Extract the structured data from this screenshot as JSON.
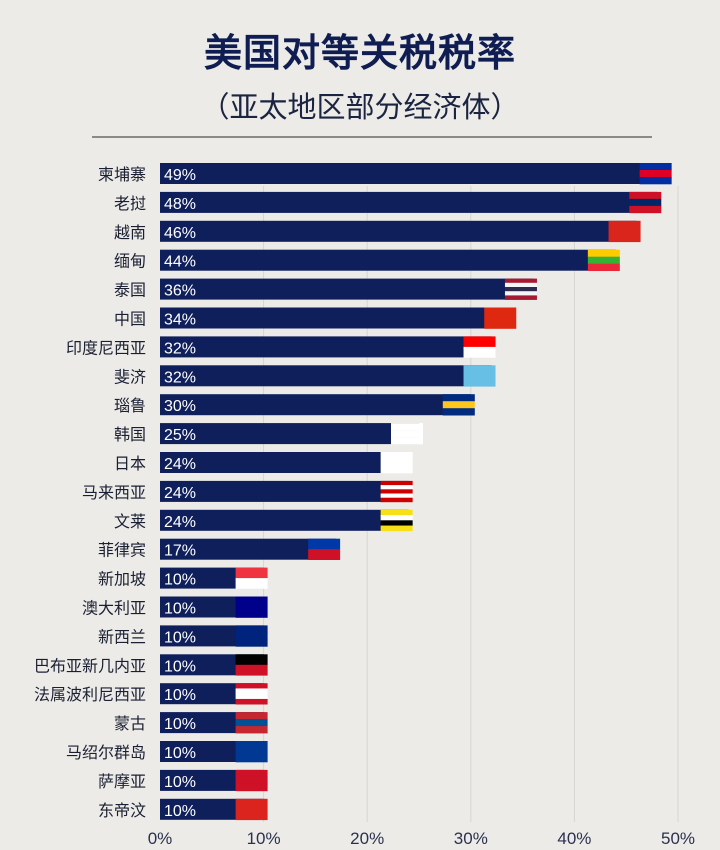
{
  "chart_data": {
    "type": "bar",
    "orientation": "horizontal",
    "title": "美国对等关税税率",
    "subtitle": "（亚太地区部分经济体）",
    "xlabel": "",
    "ylabel": "",
    "xlim": [
      0,
      50
    ],
    "x_ticks": [
      "0%",
      "10%",
      "20%",
      "30%",
      "40%",
      "50%"
    ],
    "grid": "vertical",
    "bar_color": "#0e1f5c",
    "categories": [
      "柬埔寨",
      "老挝",
      "越南",
      "缅甸",
      "泰国",
      "中国",
      "印度尼西亚",
      "斐济",
      "瑙鲁",
      "韩国",
      "日本",
      "马来西亚",
      "文莱",
      "菲律宾",
      "新加坡",
      "澳大利亚",
      "新西兰",
      "巴布亚新几内亚",
      "法属波利尼西亚",
      "蒙古",
      "马绍尔群岛",
      "萨摩亚",
      "东帝汶"
    ],
    "values": [
      49,
      48,
      46,
      44,
      36,
      34,
      32,
      32,
      30,
      25,
      24,
      24,
      24,
      17,
      10,
      10,
      10,
      10,
      10,
      10,
      10,
      10,
      10
    ],
    "data_labels": [
      "49%",
      "48%",
      "46%",
      "44%",
      "36%",
      "34%",
      "32%",
      "32%",
      "30%",
      "25%",
      "24%",
      "24%",
      "24%",
      "17%",
      "10%",
      "10%",
      "10%",
      "10%",
      "10%",
      "10%",
      "10%",
      "10%",
      "10%"
    ],
    "flag_colors": [
      [
        "#032ea1",
        "#e00025",
        "#032ea1"
      ],
      [
        "#ce1126",
        "#002868",
        "#ce1126"
      ],
      [
        "#da251d",
        "#da251d",
        "#da251d"
      ],
      [
        "#fecb00",
        "#34b233",
        "#ea2839"
      ],
      [
        "#a51931",
        "#f4f5f8",
        "#2d2a4a",
        "#f4f5f8",
        "#a51931"
      ],
      [
        "#de2910",
        "#de2910",
        "#de2910"
      ],
      [
        "#ff0000",
        "#ffffff"
      ],
      [
        "#68bfe5",
        "#68bfe5",
        "#68bfe5"
      ],
      [
        "#002b7f",
        "#ffc61e",
        "#002b7f"
      ],
      [
        "#ffffff",
        "#ffffff",
        "#ffffff"
      ],
      [
        "#ffffff",
        "#ffffff",
        "#ffffff"
      ],
      [
        "#cc0001",
        "#ffffff",
        "#cc0001",
        "#ffffff",
        "#cc0001"
      ],
      [
        "#f7e017",
        "#ffffff",
        "#000000",
        "#f7e017"
      ],
      [
        "#0038a8",
        "#ce1126"
      ],
      [
        "#ef3340",
        "#ffffff"
      ],
      [
        "#00008b",
        "#00008b",
        "#00008b"
      ],
      [
        "#00247d",
        "#00247d",
        "#00247d"
      ],
      [
        "#000000",
        "#ce1126"
      ],
      [
        "#ce1126",
        "#ffffff",
        "#ffffff",
        "#ce1126"
      ],
      [
        "#c4272f",
        "#015197",
        "#c4272f"
      ],
      [
        "#003893",
        "#003893",
        "#003893"
      ],
      [
        "#ce1126",
        "#ce1126",
        "#ce1126"
      ],
      [
        "#dc241f",
        "#dc241f",
        "#dc241f"
      ]
    ]
  }
}
